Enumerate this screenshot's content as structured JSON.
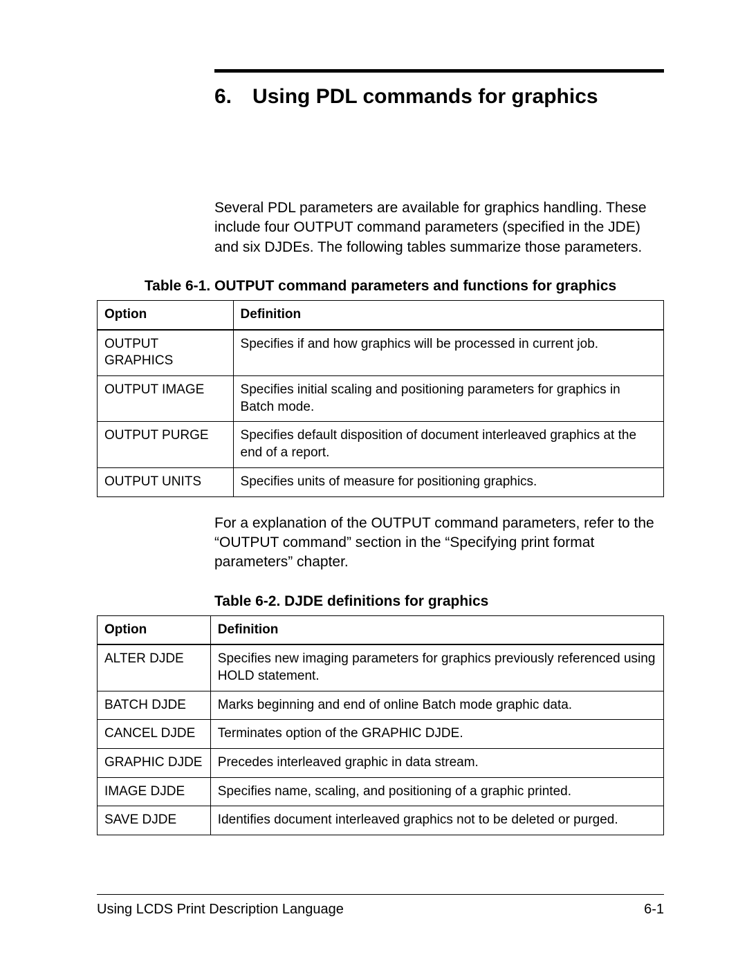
{
  "chapter": {
    "number": "6.",
    "title": "Using PDL commands for graphics"
  },
  "intro": "Several PDL parameters are available for graphics handling. These include four OUTPUT command parameters (specified in the JDE) and six DJDEs. The following tables summarize those parameters.",
  "table1": {
    "caption": "Table 6-1. OUTPUT command parameters and functions for graphics",
    "headers": [
      "Option",
      "Definition"
    ],
    "rows": [
      [
        "OUTPUT GRAPHICS",
        "Specifies if and how graphics will be processed in current job."
      ],
      [
        "OUTPUT IMAGE",
        "Specifies initial scaling and positioning parameters for graphics in Batch mode."
      ],
      [
        "OUTPUT PURGE",
        "Specifies default disposition of document interleaved graphics at the end of a report."
      ],
      [
        "OUTPUT UNITS",
        "Specifies units of measure for positioning graphics."
      ]
    ]
  },
  "mid_para": "For a explanation of the OUTPUT command parameters, refer to the “OUTPUT command” section in the “Specifying print format parameters” chapter.",
  "table2": {
    "caption": "Table 6-2. DJDE definitions for graphics",
    "headers": [
      "Option",
      "Definition"
    ],
    "rows": [
      [
        "ALTER DJDE",
        "Specifies new imaging parameters for graphics previously referenced using HOLD statement."
      ],
      [
        "BATCH DJDE",
        "Marks beginning and end of online Batch mode graphic data."
      ],
      [
        "CANCEL DJDE",
        "Terminates option of the GRAPHIC DJDE."
      ],
      [
        "GRAPHIC DJDE",
        "Precedes interleaved graphic in data stream."
      ],
      [
        "IMAGE DJDE",
        "Specifies name, scaling, and positioning of a graphic printed."
      ],
      [
        "SAVE DJDE",
        "Identifies document interleaved graphics not to be deleted or purged."
      ]
    ]
  },
  "footer": {
    "left": "Using LCDS Print Description Language",
    "right": "6-1"
  }
}
